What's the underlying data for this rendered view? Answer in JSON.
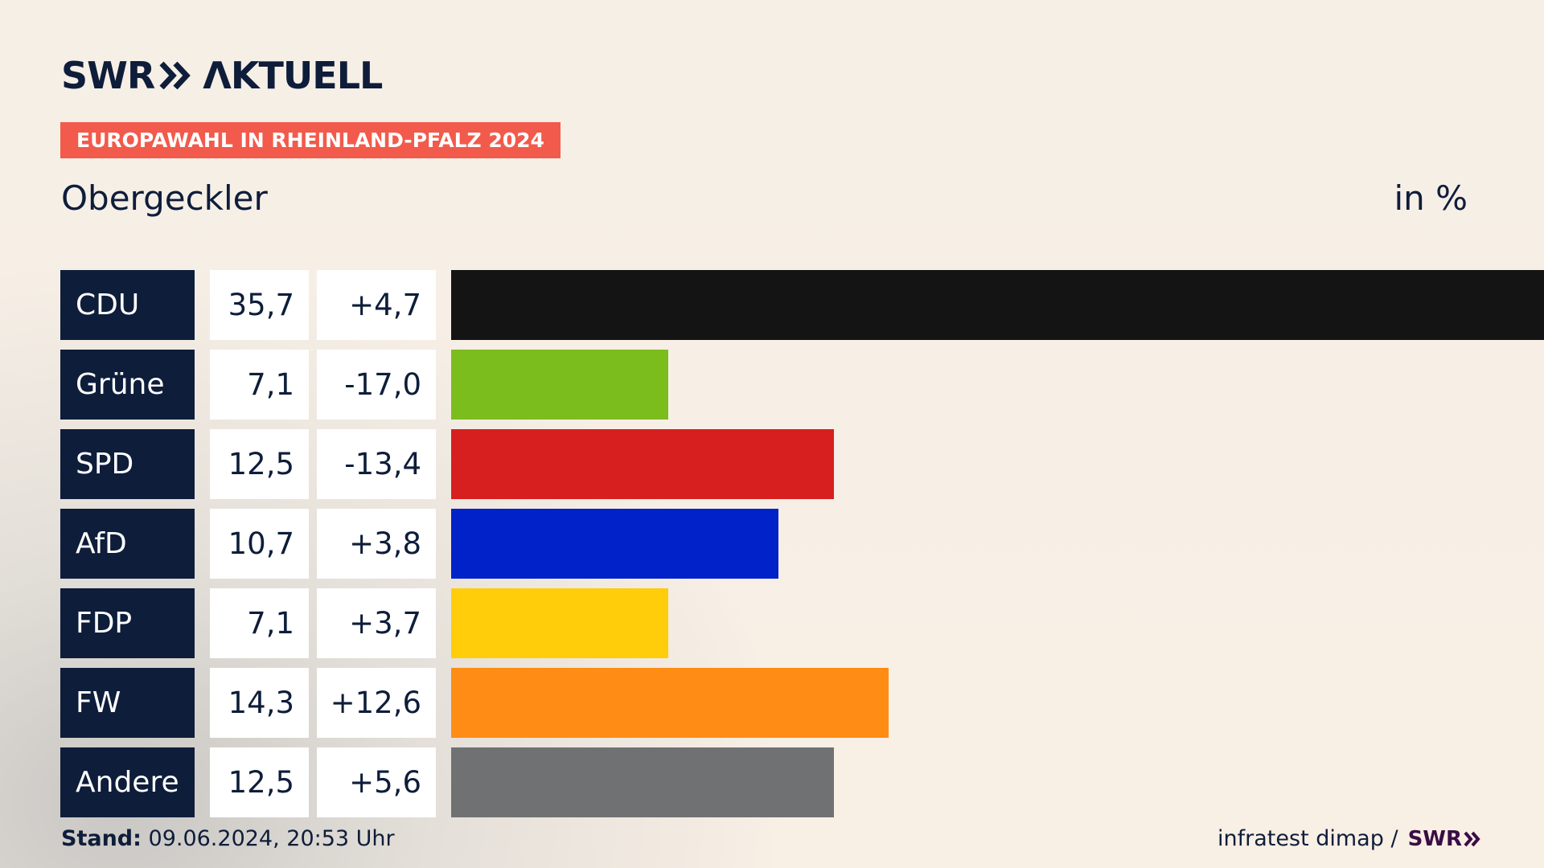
{
  "brand": {
    "swr": "SWR",
    "aktuell": "ΛKTUELL",
    "footer_swr": "SWR"
  },
  "badge": "EUROPAWAHL IN RHEINLAND-PFALZ 2024",
  "region": "Obergeckler",
  "unit": "in %",
  "footer": {
    "stand_label": "Stand:",
    "stand_value": "09.06.2024, 20:53 Uhr",
    "source": "infratest dimap /"
  },
  "colors": {
    "navy": "#0e1d3a",
    "badge": "#f25a4b"
  },
  "chart_data": {
    "type": "bar",
    "orientation": "horizontal",
    "categories": [
      "CDU",
      "Grüne",
      "SPD",
      "AfD",
      "FDP",
      "FW",
      "Andere"
    ],
    "values": [
      35.7,
      7.1,
      12.5,
      10.7,
      7.1,
      14.3,
      12.5
    ],
    "values_text": [
      "35,7",
      "7,1",
      "12,5",
      "10,7",
      "7,1",
      "14,3",
      "12,5"
    ],
    "diff_text": [
      "+4,7",
      "-17,0",
      "-13,4",
      "+3,8",
      "+3,7",
      "+12,6",
      "+5,6"
    ],
    "diff": [
      4.7,
      -17.0,
      -13.4,
      3.8,
      3.7,
      12.6,
      5.6
    ],
    "bar_colors": [
      "#141414",
      "#7cbd1e",
      "#d81f1f",
      "#0022c8",
      "#ffcd0a",
      "#ff8c14",
      "#707173"
    ],
    "xlim": [
      0,
      35.7
    ]
  }
}
